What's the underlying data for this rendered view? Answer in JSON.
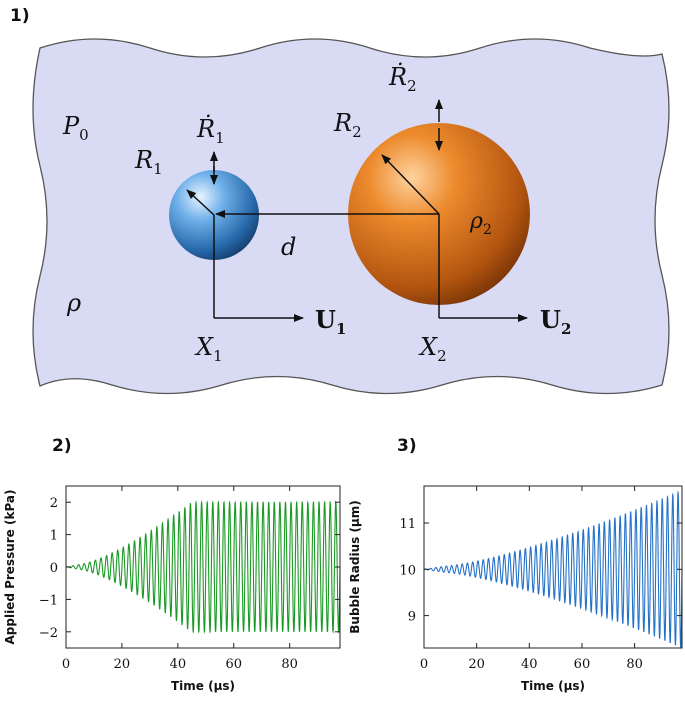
{
  "panels": {
    "p1": "1)",
    "p2": "2)",
    "p3": "3)"
  },
  "diagram": {
    "labels": {
      "P0": {
        "main": "P",
        "sub": "0"
      },
      "rho": "ρ",
      "R1": {
        "main": "R",
        "sub": "1"
      },
      "R1dot": {
        "main": "Ṙ",
        "sub": "1"
      },
      "R2": {
        "main": "R",
        "sub": "2"
      },
      "R2dot": {
        "main": "Ṙ",
        "sub": "2"
      },
      "d": "d",
      "rho2": {
        "main": "ρ",
        "sub": "2"
      },
      "X1": {
        "main": "X",
        "sub": "1"
      },
      "X2": {
        "main": "X",
        "sub": "2"
      },
      "U1": {
        "main": "U",
        "sub": "1"
      },
      "U2": {
        "main": "U",
        "sub": "2"
      }
    },
    "colors": {
      "liquid": "#d8daf3",
      "bubble1": "#3a86cc",
      "bubble2": "#d9741c"
    }
  },
  "chart_data": [
    {
      "type": "line",
      "xlabel": "Time (μs)",
      "ylabel": "Applied Pressure (kPa)",
      "xlim": [
        0,
        98
      ],
      "ylim": [
        -2.5,
        2.5
      ],
      "xticks": [
        "0",
        "20",
        "40",
        "60",
        "80"
      ],
      "yticks": [
        "2",
        "1",
        "0",
        "−1",
        "−2"
      ],
      "color": "#1a9a24",
      "series": [
        {
          "ramp_start_us": 5,
          "ramp_end_us": 45,
          "max_amplitude": 2.0,
          "cycles_per_us": 0.5,
          "baseline": 0
        }
      ]
    },
    {
      "type": "line",
      "xlabel": "Time (μs)",
      "ylabel": "Bubble Radius (μm)",
      "xlim": [
        0,
        98
      ],
      "ylim": [
        8.3,
        11.8
      ],
      "xticks": [
        "0",
        "20",
        "40",
        "60",
        "80"
      ],
      "yticks": [
        "11",
        "10",
        "9"
      ],
      "color": "#2472c8",
      "series": [
        {
          "ramp_start_us": 8,
          "ramp_end_us": 98,
          "max_amplitude": 1.7,
          "cycles_per_us": 0.5,
          "baseline": 10
        }
      ]
    }
  ]
}
